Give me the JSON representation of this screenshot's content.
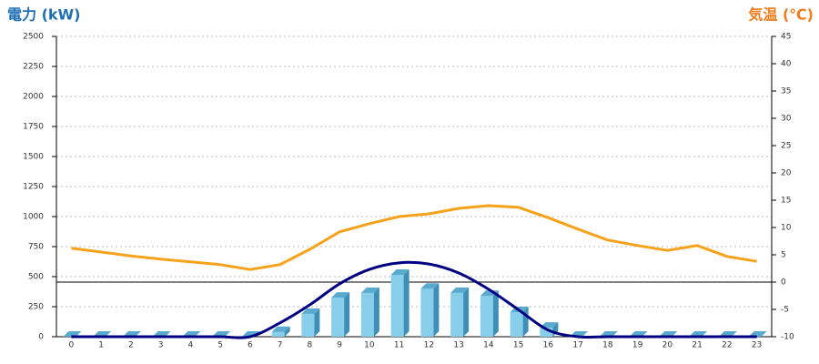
{
  "chart_data": {
    "type": "bar-line",
    "y_title": "電力 (kW)",
    "y2_title": "気温 (℃)",
    "categories": [
      "0",
      "1",
      "2",
      "3",
      "4",
      "5",
      "6",
      "7",
      "8",
      "9",
      "10",
      "11",
      "12",
      "13",
      "14",
      "15",
      "16",
      "17",
      "18",
      "19",
      "20",
      "21",
      "22",
      "23"
    ],
    "ylim": [
      0,
      2500
    ],
    "yticks": [
      0,
      250,
      500,
      750,
      1000,
      1250,
      1500,
      1750,
      2000,
      2250,
      2500
    ],
    "y2lim": [
      -10,
      45
    ],
    "y2ticks": [
      -10,
      -5,
      0,
      5,
      10,
      15,
      20,
      25,
      30,
      35,
      40,
      45
    ],
    "grid": true,
    "y2_zero_line": true,
    "series": [
      {
        "type": "bar",
        "color": "#87ceeb",
        "values": [
          0,
          0,
          0,
          0,
          0,
          0,
          0,
          40,
          190,
          325,
          365,
          515,
          400,
          365,
          340,
          205,
          75,
          0,
          0,
          0,
          0,
          0,
          0,
          0
        ]
      },
      {
        "type": "line",
        "smooth": true,
        "color": "#000080",
        "values": [
          0,
          0,
          0,
          0,
          0,
          0,
          0,
          115,
          265,
          440,
          560,
          615,
          605,
          530,
          395,
          225,
          55,
          0,
          0,
          0,
          0,
          0,
          0,
          0
        ]
      },
      {
        "type": "line",
        "axis": "y2",
        "color": "#f7a21b",
        "values": [
          6.2,
          5.5,
          4.8,
          4.2,
          3.7,
          3.2,
          2.3,
          3.2,
          6.0,
          9.2,
          10.7,
          12.0,
          12.5,
          13.5,
          14.0,
          13.7,
          11.8,
          9.7,
          7.7,
          6.7,
          5.8,
          6.7,
          4.7,
          3.8
        ]
      }
    ]
  }
}
